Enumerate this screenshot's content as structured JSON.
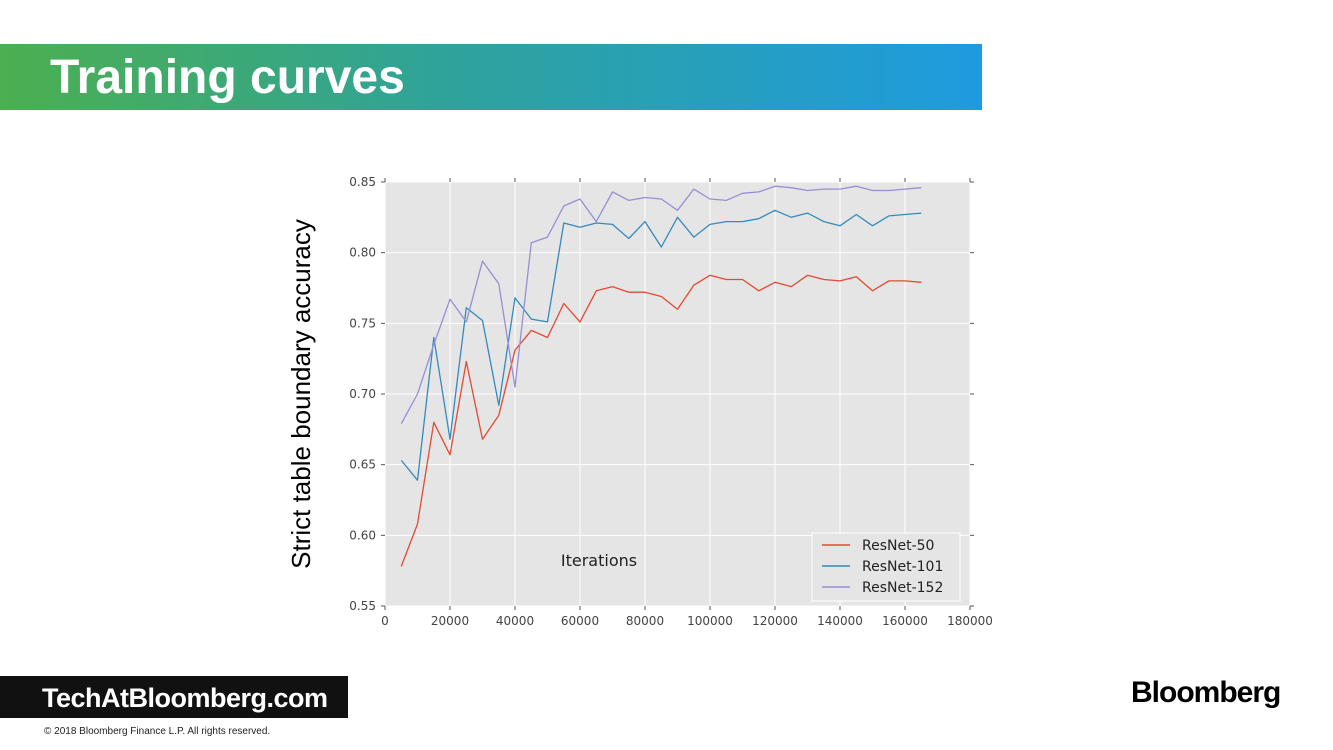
{
  "slide": {
    "title": "Training curves",
    "footer_brand": "TechAtBloomberg.com",
    "copyright": "© 2018 Bloomberg Finance L.P. All rights reserved.",
    "logo": "Bloomberg"
  },
  "colors": {
    "plot_background": "#e5e5e5",
    "resnet50": "#e24a33",
    "resnet101": "#348abd",
    "resnet152": "#988ed5"
  },
  "chart_data": {
    "type": "line",
    "title": "",
    "xlabel": "Iterations",
    "ylabel": "Strict table boundary accuracy",
    "xlim": [
      0,
      180000
    ],
    "ylim": [
      0.55,
      0.85
    ],
    "xticks": [
      "0",
      "20000",
      "40000",
      "60000",
      "80000",
      "100000",
      "120000",
      "140000",
      "160000",
      "180000"
    ],
    "yticks": [
      "0.55",
      "0.60",
      "0.65",
      "0.70",
      "0.75",
      "0.80",
      "0.85"
    ],
    "grid": true,
    "legend_position": "bottom-right",
    "x": [
      5000,
      10000,
      15000,
      20000,
      25000,
      30000,
      35000,
      40000,
      45000,
      50000,
      55000,
      60000,
      65000,
      70000,
      75000,
      80000,
      85000,
      90000,
      95000,
      100000,
      105000,
      110000,
      115000,
      120000,
      125000,
      130000,
      135000,
      140000,
      145000,
      150000,
      155000,
      160000,
      165000
    ],
    "series": [
      {
        "name": "ResNet-50",
        "color": "#e24a33",
        "values": [
          0.578,
          0.608,
          0.68,
          0.657,
          0.723,
          0.668,
          0.685,
          0.731,
          0.745,
          0.74,
          0.764,
          0.751,
          0.773,
          0.776,
          0.772,
          0.772,
          0.769,
          0.76,
          0.777,
          0.784,
          0.781,
          0.781,
          0.773,
          0.779,
          0.776,
          0.784,
          0.781,
          0.78,
          0.783,
          0.773,
          0.78,
          0.78,
          0.779
        ]
      },
      {
        "name": "ResNet-101",
        "color": "#348abd",
        "values": [
          0.653,
          0.639,
          0.74,
          0.668,
          0.761,
          0.752,
          0.692,
          0.768,
          0.753,
          0.751,
          0.821,
          0.818,
          0.821,
          0.82,
          0.81,
          0.822,
          0.804,
          0.825,
          0.811,
          0.82,
          0.822,
          0.822,
          0.824,
          0.83,
          0.825,
          0.828,
          0.822,
          0.819,
          0.827,
          0.819,
          0.826,
          0.827,
          0.828
        ]
      },
      {
        "name": "ResNet-152",
        "color": "#988ed5",
        "values": [
          0.679,
          0.7,
          0.735,
          0.767,
          0.751,
          0.794,
          0.778,
          0.705,
          0.807,
          0.811,
          0.833,
          0.838,
          0.822,
          0.843,
          0.837,
          0.839,
          0.838,
          0.83,
          0.845,
          0.838,
          0.837,
          0.842,
          0.843,
          0.847,
          0.846,
          0.844,
          0.845,
          0.845,
          0.847,
          0.844,
          0.844,
          0.845,
          0.846
        ]
      }
    ]
  }
}
